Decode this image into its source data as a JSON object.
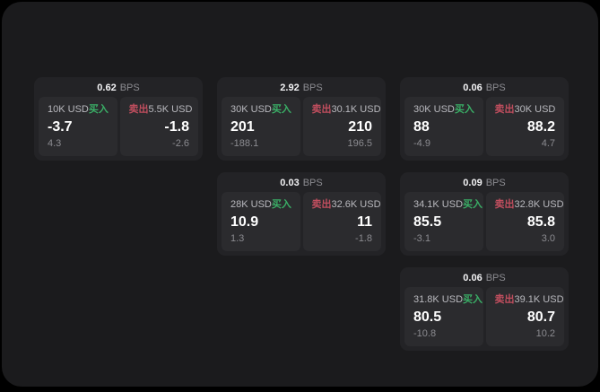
{
  "app": {
    "unit_label": "BPS",
    "buy_label": "买入",
    "sell_label": "卖出",
    "colors": {
      "background": "#000000",
      "surface": "#1b1b1d",
      "card": "#232326",
      "pane": "#2b2b2e",
      "buy_accent": "#3aae66",
      "sell_accent": "#c04e5e",
      "text_primary": "#ffffff",
      "text_secondary": "#b9b9be",
      "text_muted": "#8b8b90"
    }
  },
  "cards": [
    {
      "bps": "0.62",
      "buy": {
        "amount": "10K USD",
        "price": "-3.7",
        "delta": "4.3"
      },
      "sell": {
        "amount": "5.5K USD",
        "price": "-1.8",
        "delta": "-2.6"
      }
    },
    {
      "bps": "2.92",
      "buy": {
        "amount": "30K USD",
        "price": "201",
        "delta": "-188.1"
      },
      "sell": {
        "amount": "30.1K USD",
        "price": "210",
        "delta": "196.5"
      }
    },
    {
      "bps": "0.06",
      "buy": {
        "amount": "30K USD",
        "price": "88",
        "delta": "-4.9"
      },
      "sell": {
        "amount": "30K USD",
        "price": "88.2",
        "delta": "4.7"
      }
    },
    {
      "bps": "0.03",
      "buy": {
        "amount": "28K USD",
        "price": "10.9",
        "delta": "1.3"
      },
      "sell": {
        "amount": "32.6K USD",
        "price": "11",
        "delta": "-1.8"
      }
    },
    {
      "bps": "0.09",
      "buy": {
        "amount": "34.1K USD",
        "price": "85.5",
        "delta": "-3.1"
      },
      "sell": {
        "amount": "32.8K USD",
        "price": "85.8",
        "delta": "3.0"
      }
    },
    {
      "bps": "0.06",
      "buy": {
        "amount": "31.8K USD",
        "price": "80.5",
        "delta": "-10.8"
      },
      "sell": {
        "amount": "39.1K USD",
        "price": "80.7",
        "delta": "10.2"
      }
    }
  ]
}
